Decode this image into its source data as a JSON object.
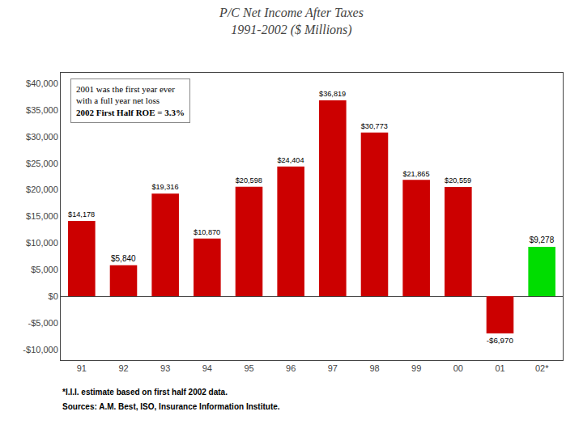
{
  "chart_data": {
    "type": "bar",
    "title": "P/C Net Income After Taxes",
    "subtitle": "1991-2002 ($ Millions)",
    "categories": [
      "91",
      "92",
      "93",
      "94",
      "95",
      "96",
      "97",
      "98",
      "99",
      "00",
      "01",
      "02*"
    ],
    "values": [
      14178,
      5840,
      19316,
      10870,
      20598,
      24404,
      36819,
      30773,
      21865,
      20559,
      -6970,
      9278
    ],
    "value_labels": [
      "$14,178",
      "$5,840",
      "$19,316",
      "$10,870",
      "$20,598",
      "$24,404",
      "$36,819",
      "$30,773",
      "$21,865",
      "$20,559",
      "-$6,970",
      "$9,278"
    ],
    "colors": [
      "#cc0000",
      "#cc0000",
      "#cc0000",
      "#cc0000",
      "#cc0000",
      "#cc0000",
      "#cc0000",
      "#cc0000",
      "#cc0000",
      "#cc0000",
      "#cc0000",
      "#00dd00"
    ],
    "data_labels": true,
    "ylim": [
      -12000,
      42000
    ],
    "yticks": [
      {
        "value": -10000,
        "label": "-$10,000"
      },
      {
        "value": -5000,
        "label": "-$5,000"
      },
      {
        "value": 0,
        "label": "$0"
      },
      {
        "value": 5000,
        "label": "$5,000"
      },
      {
        "value": 10000,
        "label": "$10,000"
      },
      {
        "value": 15000,
        "label": "$15,000"
      },
      {
        "value": 20000,
        "label": "$20,000"
      },
      {
        "value": 25000,
        "label": "$25,000"
      },
      {
        "value": 30000,
        "label": "$30,000"
      },
      {
        "value": 35000,
        "label": "$35,000"
      },
      {
        "value": 40000,
        "label": "$40,000"
      }
    ],
    "grid": false,
    "annotations": [
      "2001 was the first year ever\nwith a full year net loss",
      "2002 First Half ROE = 3.3%",
      "*I.I.I. estimate based on first half 2002 data.",
      "Sources: A.M. Best, ISO, Insurance Information Institute."
    ]
  }
}
